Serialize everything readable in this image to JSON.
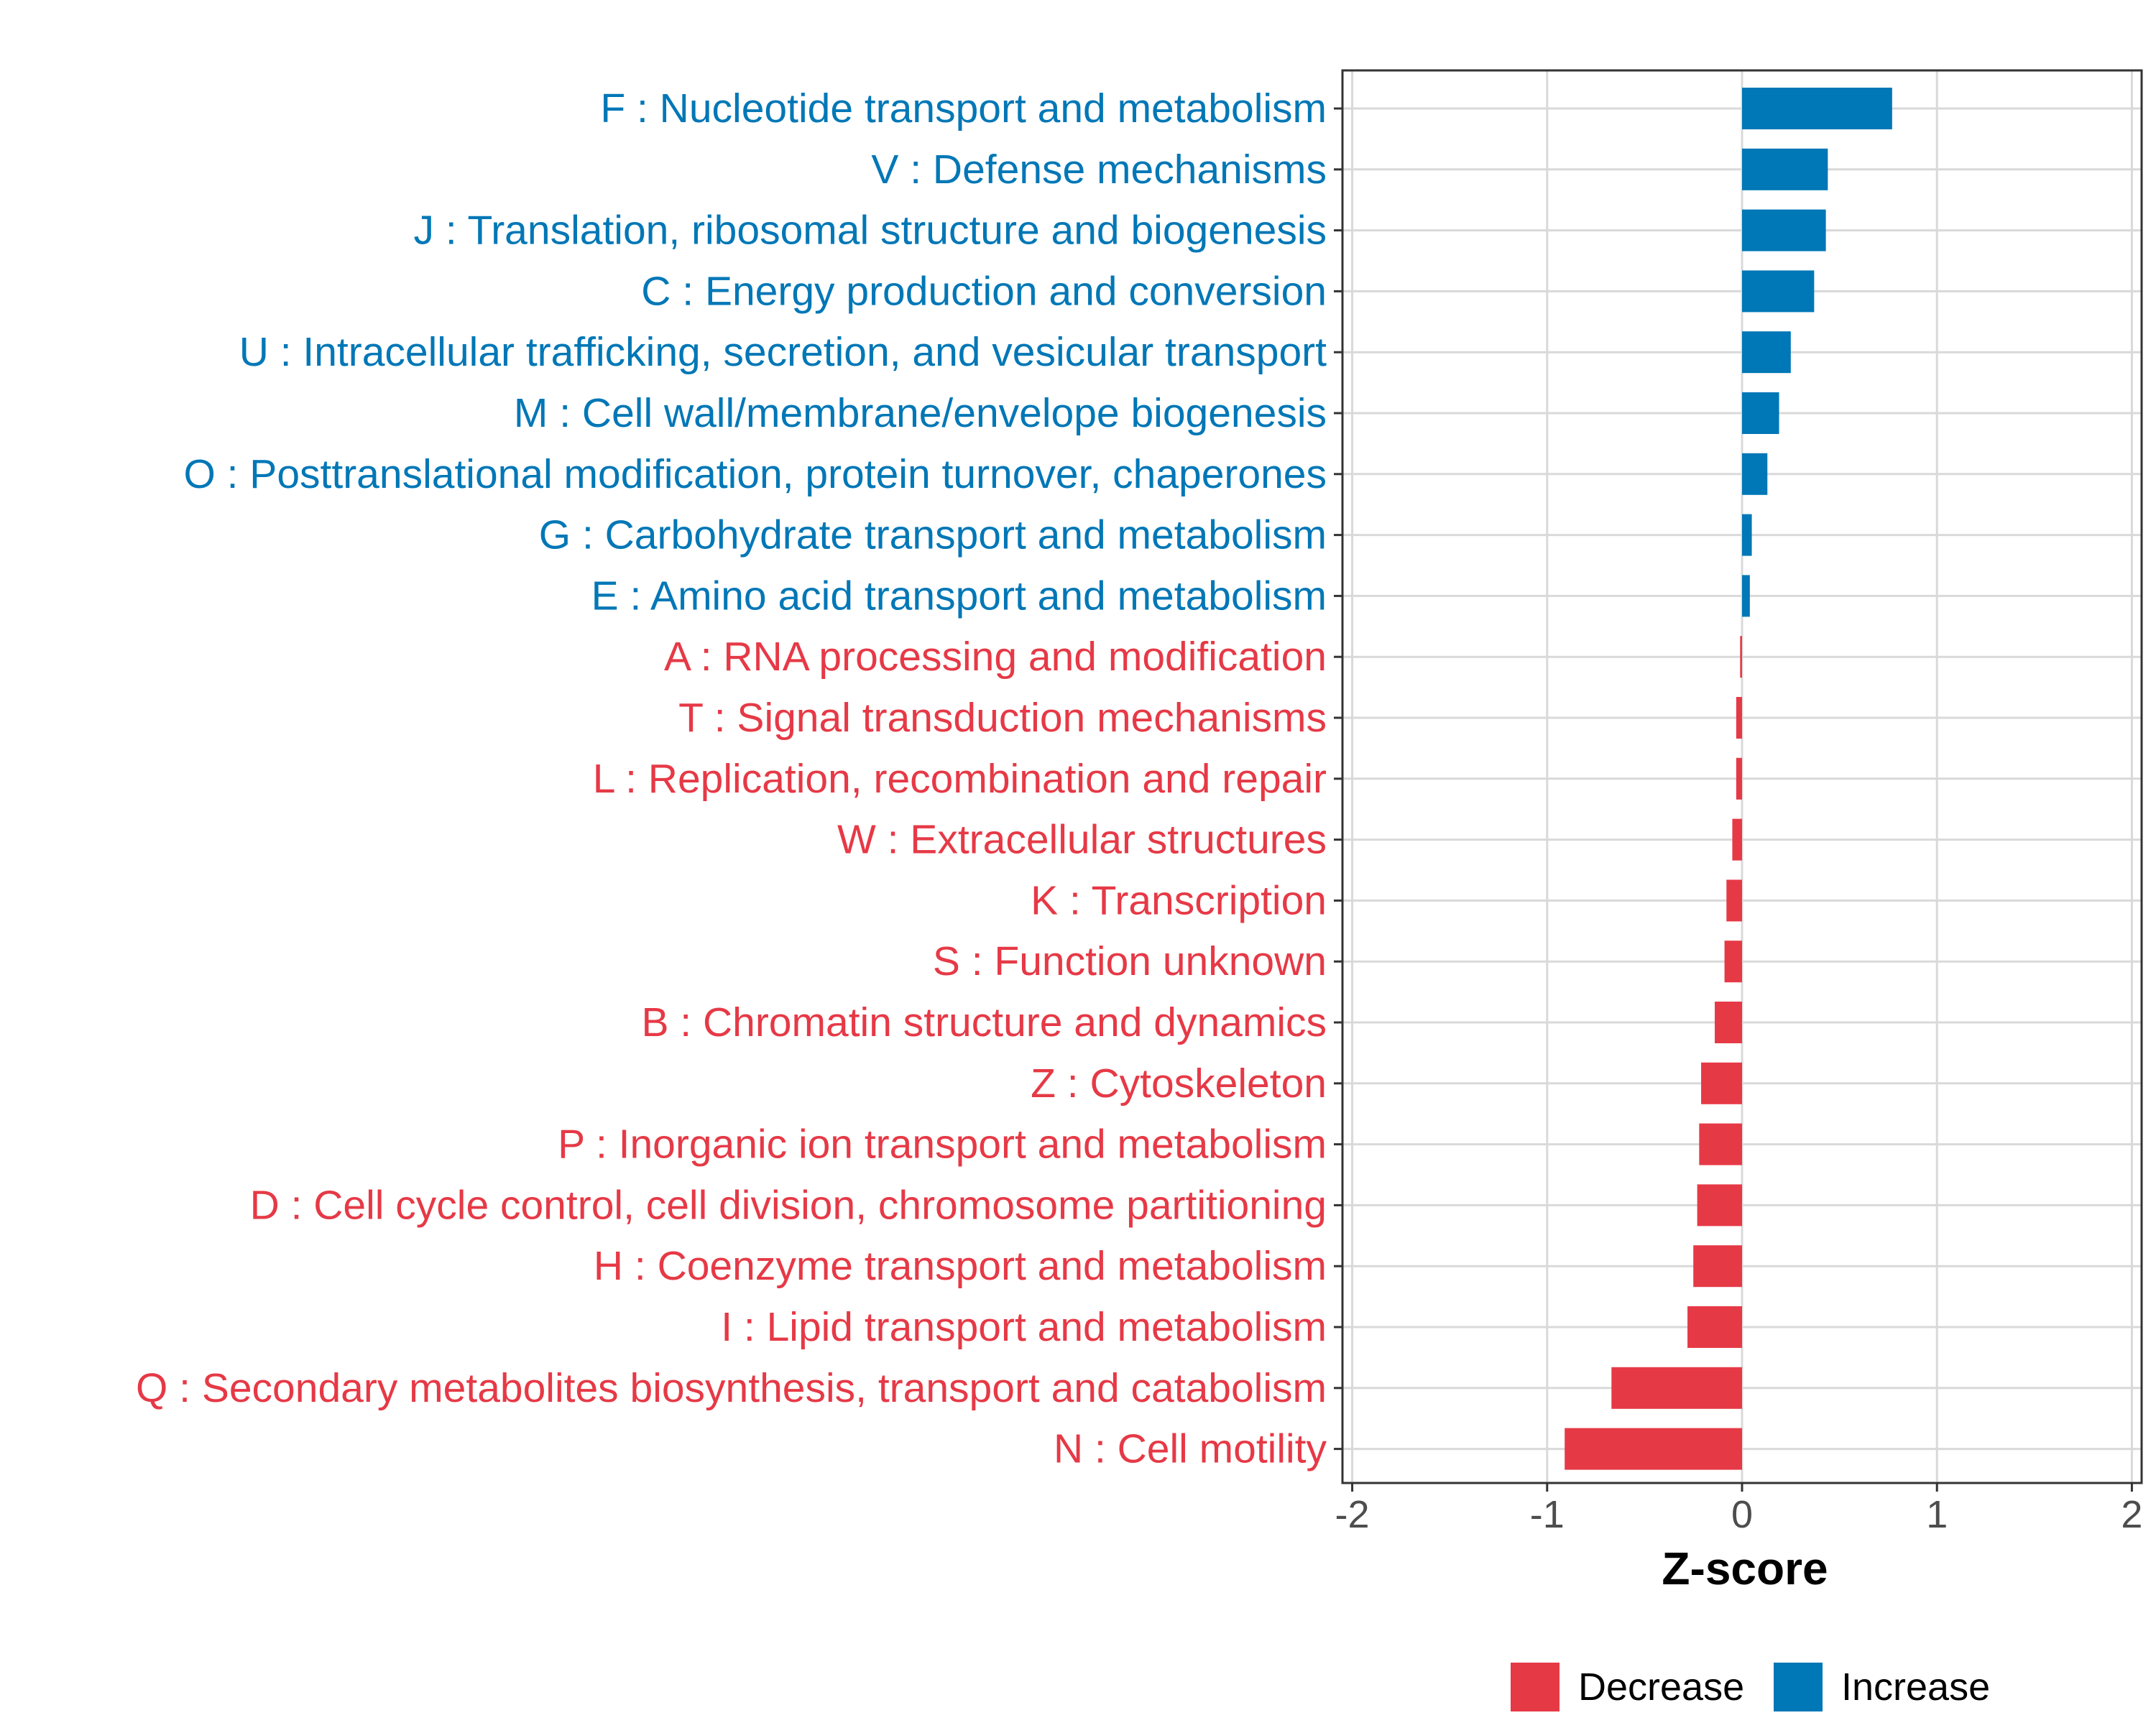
{
  "chart_data": {
    "type": "bar",
    "orientation": "horizontal",
    "xlabel": "Z-score",
    "xlim": [
      -2.05,
      2.05
    ],
    "xticks": [
      -2,
      -1,
      0,
      1,
      2
    ],
    "xtick_labels": [
      "-2",
      "-1",
      "0",
      "1",
      "2"
    ],
    "grid": true,
    "legend": {
      "placement": "bottom-center",
      "entries": [
        {
          "key": "decrease",
          "label": "Decrease",
          "color": "#E63946"
        },
        {
          "key": "increase",
          "label": "Increase",
          "color": "#0077B6"
        }
      ]
    },
    "categories": [
      "F : Nucleotide transport and metabolism",
      "V : Defense mechanisms",
      "J : Translation, ribosomal structure and biogenesis",
      "C : Energy production and conversion",
      "U : Intracellular trafficking, secretion, and vesicular transport",
      "M : Cell wall/membrane/envelope biogenesis",
      "O : Posttranslational modification, protein turnover, chaperones",
      "G : Carbohydrate transport and metabolism",
      "E : Amino acid transport and metabolism",
      "A : RNA processing and modification",
      "T : Signal transduction mechanisms",
      "L : Replication, recombination and repair",
      "W : Extracellular structures",
      "K : Transcription",
      "S : Function unknown",
      "B : Chromatin structure and dynamics",
      "Z : Cytoskeleton",
      "P : Inorganic ion transport and metabolism",
      "D : Cell cycle control, cell division, chromosome partitioning",
      "H : Coenzyme transport and metabolism",
      "I : Lipid transport and metabolism",
      "Q : Secondary metabolites biosynthesis, transport and catabolism",
      "N : Cell motility"
    ],
    "values": [
      0.77,
      0.44,
      0.43,
      0.37,
      0.25,
      0.19,
      0.13,
      0.05,
      0.04,
      -0.01,
      -0.03,
      -0.03,
      -0.05,
      -0.08,
      -0.09,
      -0.14,
      -0.21,
      -0.22,
      -0.23,
      -0.25,
      -0.28,
      -0.67,
      -0.91
    ],
    "groups": [
      "increase",
      "increase",
      "increase",
      "increase",
      "increase",
      "increase",
      "increase",
      "increase",
      "increase",
      "decrease",
      "decrease",
      "decrease",
      "decrease",
      "decrease",
      "decrease",
      "decrease",
      "decrease",
      "decrease",
      "decrease",
      "decrease",
      "decrease",
      "decrease",
      "decrease"
    ]
  }
}
